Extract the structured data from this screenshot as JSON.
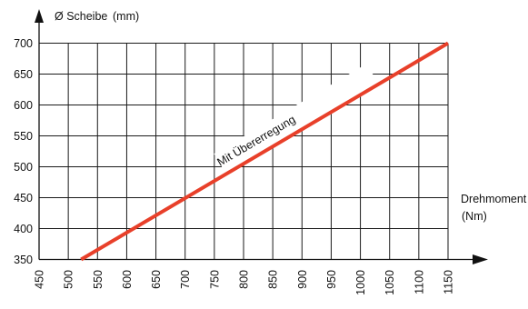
{
  "chart_data": {
    "type": "line",
    "y_axis_title": "Ø Scheibe",
    "y_axis_unit": "(mm)",
    "x_axis_title": "Drehmoment",
    "x_axis_unit": "(Nm)",
    "x_ticks": [
      "450",
      "500",
      "550",
      "600",
      "650",
      "700",
      "750",
      "800",
      "850",
      "900",
      "950",
      "1000",
      "1050",
      "1100",
      "1150"
    ],
    "y_ticks": [
      "350",
      "400",
      "450",
      "500",
      "550",
      "600",
      "650",
      "700"
    ],
    "xlim": [
      450,
      1150
    ],
    "ylim": [
      350,
      700
    ],
    "grid": true,
    "series": [
      {
        "name": "Mit Übererregung",
        "color": "#e8402a",
        "x": [
          522,
          1150
        ],
        "y": [
          350,
          700
        ]
      }
    ]
  }
}
